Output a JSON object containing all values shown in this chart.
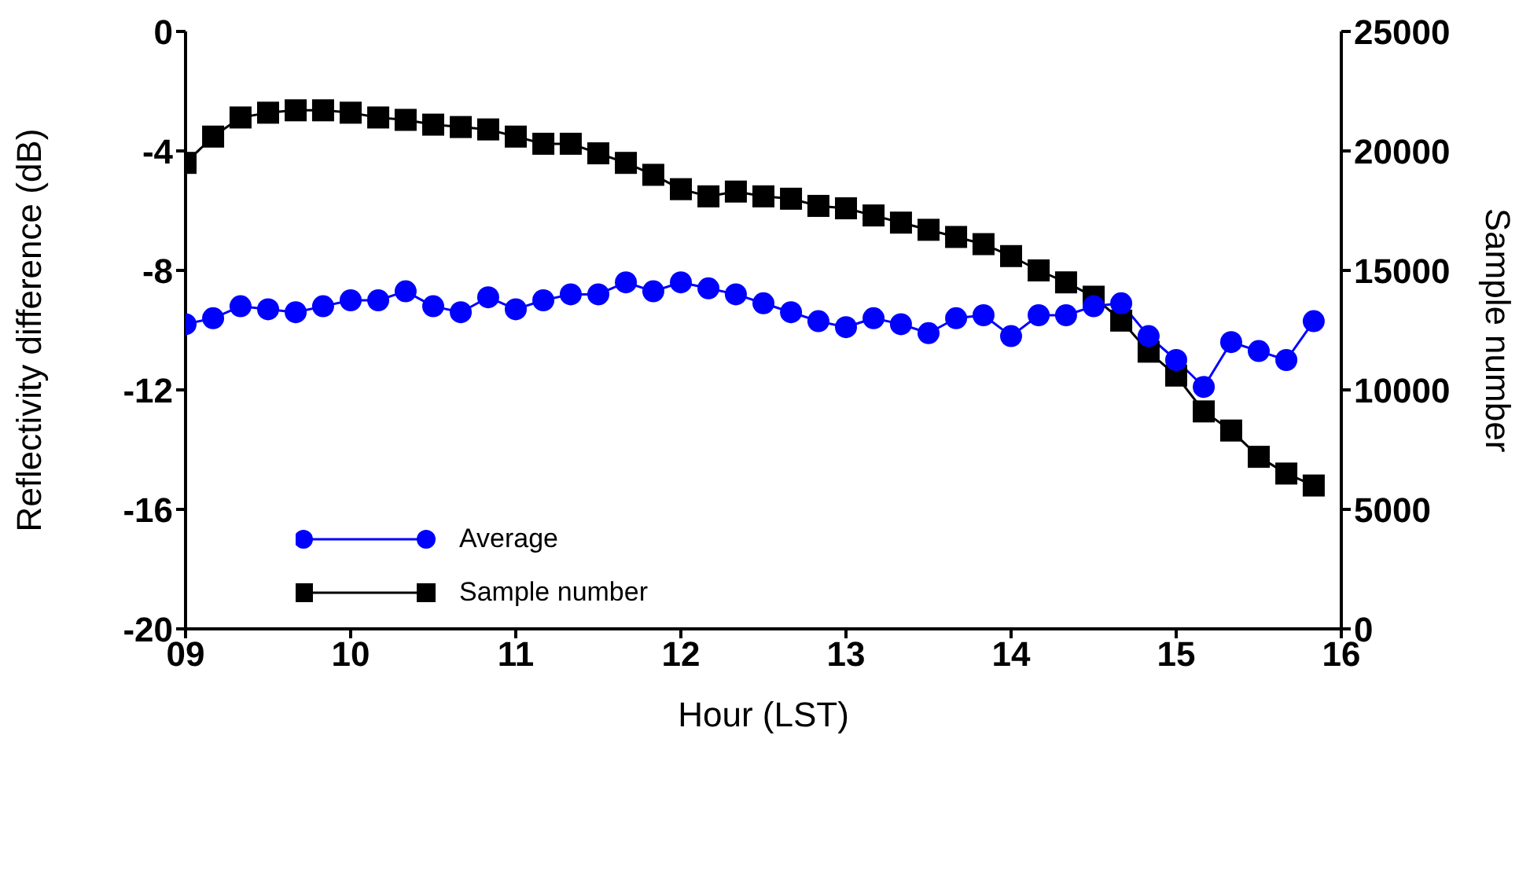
{
  "chart_data": {
    "type": "line",
    "xlabel": "Hour (LST)",
    "ylabel": "Reflectivity difference (dB)",
    "y2label": "Sample number",
    "x": [
      9,
      9.167,
      9.333,
      9.5,
      9.667,
      9.833,
      10,
      10.167,
      10.333,
      10.5,
      10.667,
      10.833,
      11,
      11.167,
      11.333,
      11.5,
      11.667,
      11.833,
      12,
      12.167,
      12.333,
      12.5,
      12.667,
      12.833,
      13,
      13.167,
      13.333,
      13.5,
      13.667,
      13.833,
      14,
      14.167,
      14.333,
      14.5,
      14.667,
      14.833,
      15,
      15.167,
      15.333,
      15.5,
      15.667,
      15.833
    ],
    "series": [
      {
        "name": "Average",
        "color": "#0000ff",
        "marker": "circle",
        "values": [
          -9.8,
          -9.6,
          -9.2,
          -9.3,
          -9.4,
          -9.2,
          -9.0,
          -9.0,
          -8.7,
          -9.2,
          -9.4,
          -8.9,
          -9.3,
          -9.0,
          -8.8,
          -8.8,
          -8.4,
          -8.7,
          -8.4,
          -8.6,
          -8.8,
          -9.1,
          -9.4,
          -9.7,
          -9.9,
          -9.6,
          -9.8,
          -10.1,
          -9.6,
          -9.5,
          -10.2,
          -9.5,
          -9.5,
          -9.2,
          -9.1,
          -10.2,
          -11.0,
          -11.9,
          -10.4,
          -10.7,
          -11.0,
          -9.7
        ]
      },
      {
        "name": "Sample number",
        "color": "#000000",
        "marker": "square",
        "axis": "y2",
        "values": [
          19500,
          20600,
          21400,
          21600,
          21700,
          21700,
          21600,
          21400,
          21300,
          21100,
          21000,
          20900,
          20600,
          20300,
          20300,
          19900,
          19500,
          19000,
          18400,
          18100,
          18300,
          18100,
          18000,
          17700,
          17600,
          17300,
          17000,
          16700,
          16400,
          16100,
          15600,
          15000,
          14500,
          13900,
          12900,
          11600,
          10600,
          9100,
          8300,
          7200,
          6500,
          6000
        ]
      }
    ],
    "xlim": [
      9,
      16
    ],
    "xticks": [
      {
        "value": 9,
        "label": "09"
      },
      10,
      11,
      12,
      13,
      14,
      15,
      16
    ],
    "ylim": [
      -20,
      0
    ],
    "yticks": [
      -20,
      -16,
      -12,
      -8,
      -4,
      0
    ],
    "y2lim": [
      0,
      25000
    ],
    "y2ticks": [
      0,
      5000,
      10000,
      15000,
      20000,
      25000
    ],
    "grid": false,
    "legend": "bottom left",
    "line_style": "solid"
  }
}
